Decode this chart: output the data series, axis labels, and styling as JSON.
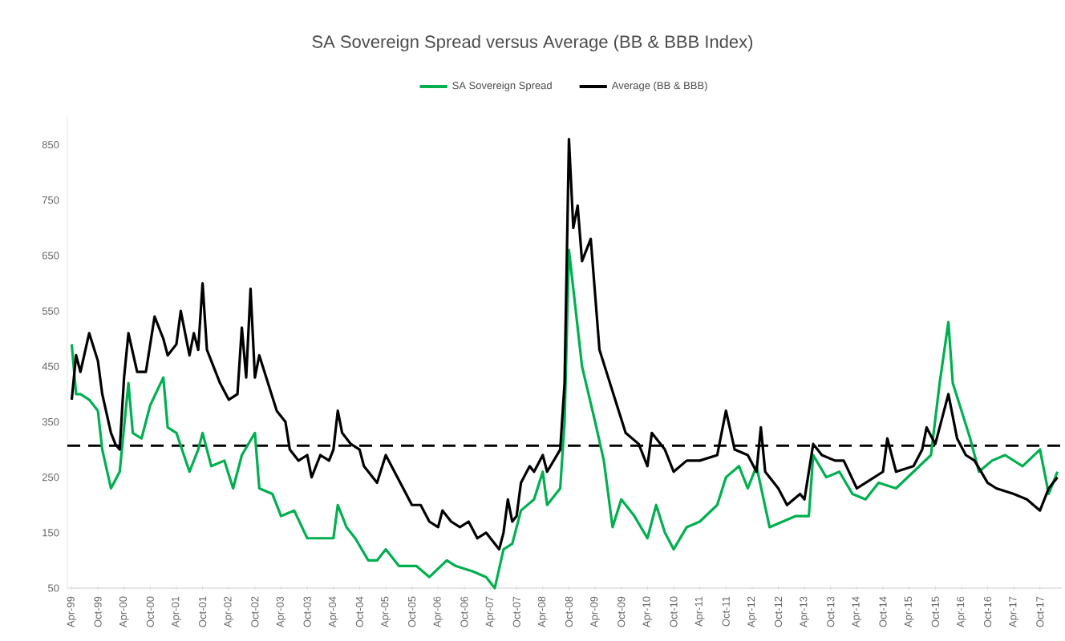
{
  "chart_data": {
    "type": "line",
    "title": "SA Sovereign Spread versus Average (BB & BBB Index)",
    "legend": "top",
    "marker": "none",
    "line_style": "solid",
    "grid": false,
    "xlim": [
      "1999-03",
      "2018-03"
    ],
    "ylim": [
      50,
      900
    ],
    "yticks": [
      50,
      150,
      250,
      350,
      450,
      550,
      650,
      750,
      850
    ],
    "xticks": [
      {
        "value": "1999-04",
        "label": "Apr-99"
      },
      {
        "value": "1999-10",
        "label": "Oct-99"
      },
      {
        "value": "2000-04",
        "label": "Apr-00"
      },
      {
        "value": "2000-10",
        "label": "Oct-00"
      },
      {
        "value": "2001-04",
        "label": "Apr-01"
      },
      {
        "value": "2001-10",
        "label": "Oct-01"
      },
      {
        "value": "2002-04",
        "label": "Apr-02"
      },
      {
        "value": "2002-10",
        "label": "Oct-02"
      },
      {
        "value": "2003-04",
        "label": "Apr-03"
      },
      {
        "value": "2003-10",
        "label": "Oct-03"
      },
      {
        "value": "2004-04",
        "label": "Apr-04"
      },
      {
        "value": "2004-10",
        "label": "Oct-04"
      },
      {
        "value": "2005-04",
        "label": "Apr-05"
      },
      {
        "value": "2005-10",
        "label": "Oct-05"
      },
      {
        "value": "2006-04",
        "label": "Apr-06"
      },
      {
        "value": "2006-10",
        "label": "Oct-06"
      },
      {
        "value": "2007-04",
        "label": "Apr-07"
      },
      {
        "value": "2007-10",
        "label": "Oct-07"
      },
      {
        "value": "2008-04",
        "label": "Apr-08"
      },
      {
        "value": "2008-10",
        "label": "Oct-08"
      },
      {
        "value": "2009-04",
        "label": "Apr-09"
      },
      {
        "value": "2009-10",
        "label": "Oct-09"
      },
      {
        "value": "2010-04",
        "label": "Apr-10"
      },
      {
        "value": "2010-10",
        "label": "Oct-10"
      },
      {
        "value": "2011-04",
        "label": "Apr-11"
      },
      {
        "value": "2011-10",
        "label": "Oct-11"
      },
      {
        "value": "2012-04",
        "label": "Apr-12"
      },
      {
        "value": "2012-10",
        "label": "Oct-12"
      },
      {
        "value": "2013-04",
        "label": "Apr-13"
      },
      {
        "value": "2013-10",
        "label": "Oct-13"
      },
      {
        "value": "2014-04",
        "label": "Apr-14"
      },
      {
        "value": "2014-10",
        "label": "Oct-14"
      },
      {
        "value": "2015-04",
        "label": "Apr-15"
      },
      {
        "value": "2015-10",
        "label": "Oct-15"
      },
      {
        "value": "2016-04",
        "label": "Apr-16"
      },
      {
        "value": "2016-10",
        "label": "Oct-16"
      },
      {
        "value": "2017-04",
        "label": "Apr-17"
      },
      {
        "value": "2017-10",
        "label": "Oct-17"
      }
    ],
    "ref_lines": [
      {
        "axis": "y",
        "value": 307,
        "color": "#000000",
        "line_style": "dashed"
      }
    ],
    "series": [
      {
        "name": "SA Sovereign Spread",
        "color": "#00b050",
        "x": [
          "1999-04",
          "1999-05",
          "1999-06",
          "1999-08",
          "1999-10",
          "1999-11",
          "2000-01",
          "2000-03",
          "2000-05",
          "2000-06",
          "2000-08",
          "2000-10",
          "2001-01",
          "2001-02",
          "2001-04",
          "2001-07",
          "2001-09",
          "2001-10",
          "2001-12",
          "2002-03",
          "2002-05",
          "2002-07",
          "2002-10",
          "2002-11",
          "2003-02",
          "2003-04",
          "2003-07",
          "2003-10",
          "2004-01",
          "2004-04",
          "2004-05",
          "2004-07",
          "2004-09",
          "2004-12",
          "2005-02",
          "2005-04",
          "2005-07",
          "2005-11",
          "2006-02",
          "2006-06",
          "2006-08",
          "2006-12",
          "2007-03",
          "2007-05",
          "2007-07",
          "2007-09",
          "2007-11",
          "2008-02",
          "2008-04",
          "2008-05",
          "2008-08",
          "2008-09",
          "2008-10",
          "2009-01",
          "2009-04",
          "2009-06",
          "2009-08",
          "2009-10",
          "2010-01",
          "2010-04",
          "2010-06",
          "2010-08",
          "2010-10",
          "2011-01",
          "2011-04",
          "2011-08",
          "2011-10",
          "2012-01",
          "2012-03",
          "2012-05",
          "2012-08",
          "2012-11",
          "2013-02",
          "2013-05",
          "2013-06",
          "2013-09",
          "2013-12",
          "2014-03",
          "2014-06",
          "2014-09",
          "2015-01",
          "2015-05",
          "2015-09",
          "2015-11",
          "2016-01",
          "2016-02",
          "2016-04",
          "2016-06",
          "2016-08",
          "2016-11",
          "2017-02",
          "2017-06",
          "2017-10",
          "2017-12",
          "2018-02"
        ],
        "values": [
          490,
          400,
          400,
          390,
          370,
          300,
          230,
          260,
          420,
          330,
          320,
          380,
          430,
          340,
          330,
          260,
          300,
          330,
          270,
          280,
          230,
          290,
          330,
          230,
          220,
          180,
          190,
          140,
          140,
          140,
          200,
          160,
          140,
          100,
          100,
          120,
          90,
          90,
          70,
          100,
          90,
          80,
          70,
          50,
          120,
          130,
          190,
          210,
          260,
          200,
          230,
          350,
          660,
          450,
          350,
          280,
          160,
          210,
          180,
          140,
          200,
          150,
          120,
          160,
          170,
          200,
          250,
          270,
          230,
          270,
          160,
          170,
          180,
          180,
          290,
          250,
          260,
          220,
          210,
          240,
          230,
          260,
          290,
          420,
          530,
          420,
          370,
          320,
          260,
          280,
          290,
          270,
          300,
          220,
          260
        ]
      },
      {
        "name": "Average (BB & BBB)",
        "color": "#000000",
        "x": [
          "1999-04",
          "1999-05",
          "1999-06",
          "1999-08",
          "1999-10",
          "1999-11",
          "2000-01",
          "2000-02",
          "2000-03",
          "2000-04",
          "2000-05",
          "2000-07",
          "2000-09",
          "2000-11",
          "2001-01",
          "2001-02",
          "2001-04",
          "2001-05",
          "2001-07",
          "2001-08",
          "2001-09",
          "2001-10",
          "2001-11",
          "2002-02",
          "2002-04",
          "2002-06",
          "2002-07",
          "2002-08",
          "2002-09",
          "2002-10",
          "2002-11",
          "2003-01",
          "2003-03",
          "2003-05",
          "2003-06",
          "2003-08",
          "2003-10",
          "2003-11",
          "2004-01",
          "2004-03",
          "2004-04",
          "2004-05",
          "2004-06",
          "2004-08",
          "2004-10",
          "2004-11",
          "2005-02",
          "2005-04",
          "2005-06",
          "2005-08",
          "2005-10",
          "2005-12",
          "2006-02",
          "2006-04",
          "2006-05",
          "2006-07",
          "2006-09",
          "2006-11",
          "2007-01",
          "2007-03",
          "2007-04",
          "2007-06",
          "2007-07",
          "2007-08",
          "2007-09",
          "2007-10",
          "2007-11",
          "2008-01",
          "2008-02",
          "2008-04",
          "2008-05",
          "2008-08",
          "2008-09",
          "2008-10",
          "2008-11",
          "2008-12",
          "2009-01",
          "2009-03",
          "2009-04",
          "2009-05",
          "2009-07",
          "2009-09",
          "2009-11",
          "2010-02",
          "2010-04",
          "2010-05",
          "2010-08",
          "2010-10",
          "2011-01",
          "2011-04",
          "2011-08",
          "2011-10",
          "2011-12",
          "2012-03",
          "2012-05",
          "2012-06",
          "2012-07",
          "2012-10",
          "2012-12",
          "2013-03",
          "2013-04",
          "2013-06",
          "2013-08",
          "2013-11",
          "2014-01",
          "2014-04",
          "2014-06",
          "2014-10",
          "2014-11",
          "2015-01",
          "2015-05",
          "2015-07",
          "2015-08",
          "2015-10",
          "2016-01",
          "2016-03",
          "2016-05",
          "2016-07",
          "2016-10",
          "2016-12",
          "2017-04",
          "2017-07",
          "2017-10",
          "2017-12",
          "2018-02"
        ],
        "values": [
          390,
          470,
          440,
          510,
          460,
          400,
          330,
          310,
          300,
          430,
          510,
          440,
          440,
          540,
          500,
          470,
          490,
          550,
          470,
          510,
          480,
          600,
          480,
          420,
          390,
          400,
          520,
          430,
          590,
          430,
          470,
          420,
          370,
          350,
          300,
          280,
          290,
          250,
          290,
          280,
          300,
          370,
          330,
          310,
          300,
          270,
          240,
          290,
          260,
          230,
          200,
          200,
          170,
          160,
          190,
          170,
          160,
          170,
          140,
          150,
          140,
          120,
          150,
          210,
          170,
          180,
          240,
          270,
          260,
          290,
          260,
          300,
          420,
          860,
          700,
          740,
          640,
          680,
          580,
          480,
          430,
          380,
          330,
          310,
          270,
          330,
          300,
          260,
          280,
          280,
          290,
          370,
          300,
          290,
          260,
          340,
          260,
          230,
          200,
          220,
          210,
          310,
          290,
          280,
          280,
          230,
          240,
          260,
          320,
          260,
          270,
          300,
          340,
          310,
          400,
          320,
          290,
          280,
          240,
          230,
          220,
          210,
          190,
          230,
          250
        ]
      }
    ]
  }
}
